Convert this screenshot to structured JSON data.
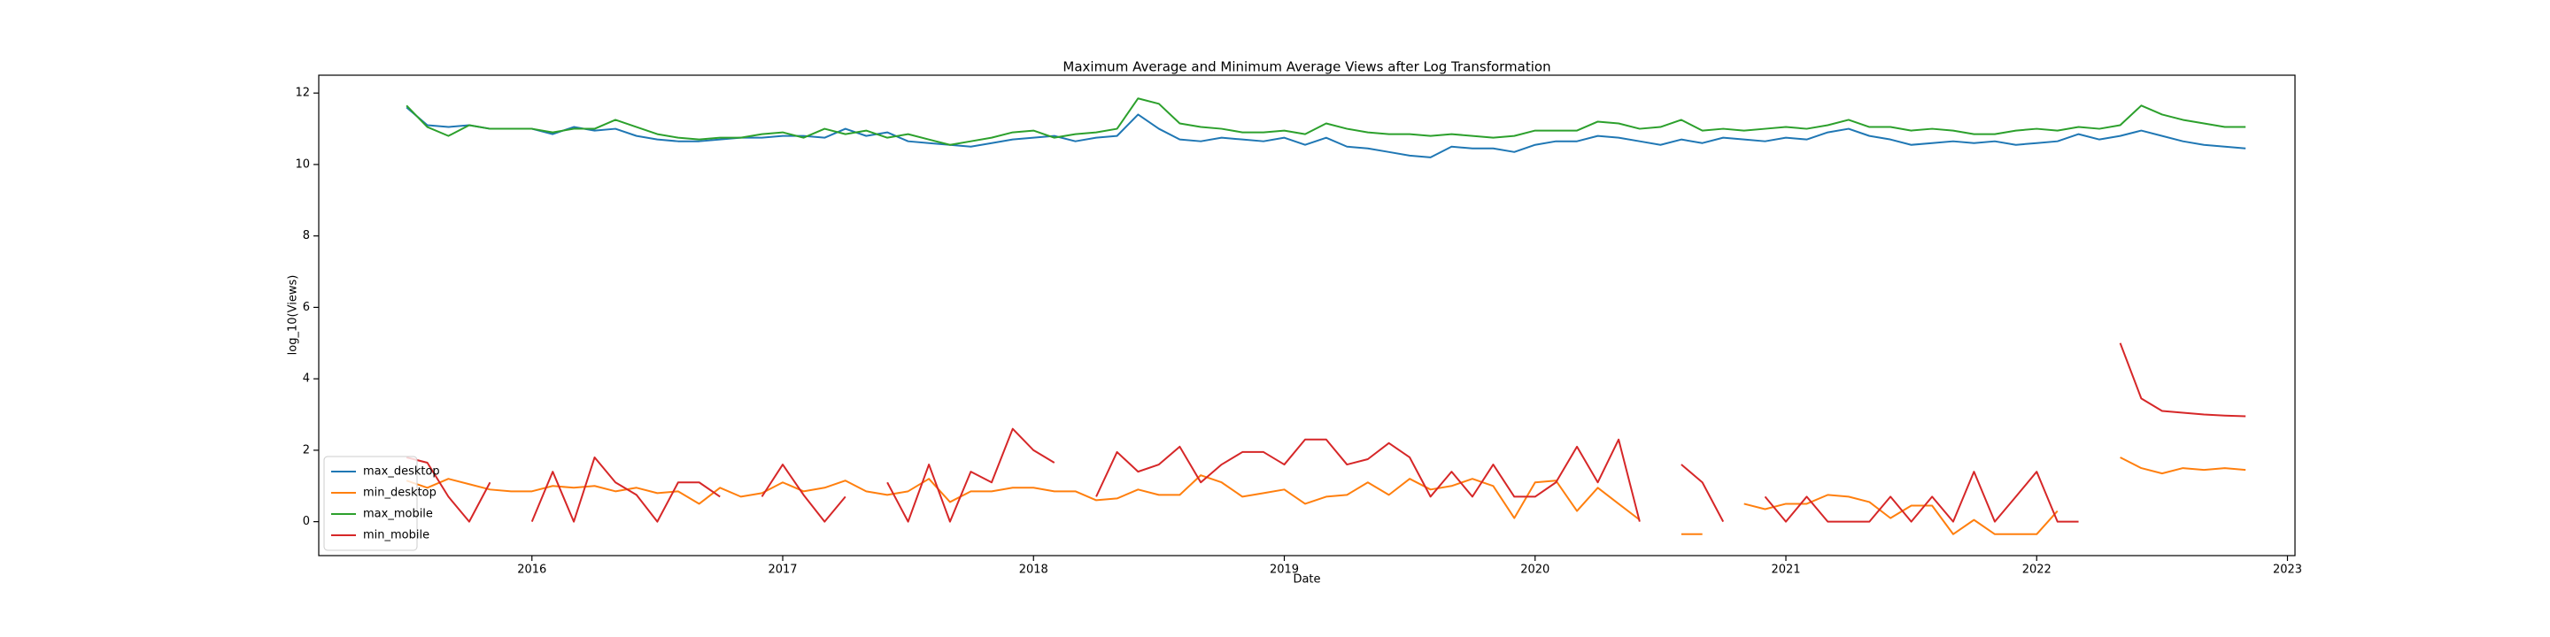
{
  "chart_data": {
    "type": "line",
    "title": "Maximum Average and Minimum Average Views after Log Transformation",
    "x_label": "Date",
    "y_label": "log_10(Views)",
    "x": [
      2015.5,
      2015.583,
      2015.667,
      2015.75,
      2015.833,
      2015.917,
      2016.0,
      2016.083,
      2016.167,
      2016.25,
      2016.333,
      2016.417,
      2016.5,
      2016.583,
      2016.667,
      2016.75,
      2016.833,
      2016.917,
      2017.0,
      2017.083,
      2017.167,
      2017.25,
      2017.333,
      2017.417,
      2017.5,
      2017.583,
      2017.667,
      2017.75,
      2017.833,
      2017.917,
      2018.0,
      2018.083,
      2018.167,
      2018.25,
      2018.333,
      2018.417,
      2018.5,
      2018.583,
      2018.667,
      2018.75,
      2018.833,
      2018.917,
      2019.0,
      2019.083,
      2019.167,
      2019.25,
      2019.333,
      2019.417,
      2019.5,
      2019.583,
      2019.667,
      2019.75,
      2019.833,
      2019.917,
      2020.0,
      2020.083,
      2020.167,
      2020.25,
      2020.333,
      2020.417,
      2020.5,
      2020.583,
      2020.667,
      2020.75,
      2020.833,
      2020.917,
      2021.0,
      2021.083,
      2021.167,
      2021.25,
      2021.333,
      2021.417,
      2021.5,
      2021.583,
      2021.667,
      2021.75,
      2021.833,
      2021.917,
      2022.0,
      2022.083,
      2022.167,
      2022.25,
      2022.333,
      2022.417,
      2022.5,
      2022.583,
      2022.667,
      2022.75,
      2022.833
    ],
    "series": [
      {
        "name": "max_desktop",
        "color": "#1f77b4",
        "values": [
          11.6,
          11.1,
          11.05,
          11.1,
          11.0,
          11.0,
          11.0,
          10.85,
          11.05,
          10.95,
          11.0,
          10.8,
          10.7,
          10.65,
          10.65,
          10.7,
          10.75,
          10.75,
          10.8,
          10.8,
          10.75,
          11.0,
          10.8,
          10.9,
          10.65,
          10.6,
          10.55,
          10.5,
          10.6,
          10.7,
          10.75,
          10.8,
          10.65,
          10.75,
          10.8,
          11.4,
          11.0,
          10.7,
          10.65,
          10.75,
          10.7,
          10.65,
          10.75,
          10.55,
          10.75,
          10.5,
          10.45,
          10.35,
          10.25,
          10.2,
          10.5,
          10.45,
          10.45,
          10.35,
          10.55,
          10.65,
          10.65,
          10.8,
          10.75,
          10.65,
          10.55,
          10.7,
          10.6,
          10.75,
          10.7,
          10.65,
          10.75,
          10.7,
          10.9,
          11.0,
          10.8,
          10.7,
          10.55,
          10.6,
          10.65,
          10.6,
          10.65,
          10.55,
          10.6,
          10.65,
          10.85,
          10.7,
          10.8,
          10.95,
          10.8,
          10.65,
          10.55,
          10.5,
          10.45
        ]
      },
      {
        "name": "min_desktop",
        "color": "#ff7f0e",
        "values": [
          1.15,
          0.95,
          1.2,
          1.05,
          0.9,
          0.85,
          0.85,
          1.0,
          0.95,
          1.0,
          0.85,
          0.95,
          0.8,
          0.85,
          0.5,
          0.95,
          0.7,
          0.8,
          1.1,
          0.85,
          0.95,
          1.15,
          0.85,
          0.75,
          0.85,
          1.2,
          0.55,
          0.85,
          0.85,
          0.95,
          0.95,
          0.85,
          0.85,
          0.6,
          0.65,
          0.9,
          0.75,
          0.75,
          1.3,
          1.1,
          0.7,
          0.8,
          0.9,
          0.5,
          0.7,
          0.75,
          1.1,
          0.75,
          1.2,
          0.9,
          1.0,
          1.2,
          1.0,
          0.1,
          1.1,
          1.15,
          0.3,
          0.95,
          0.5,
          0.05,
          null,
          -0.35,
          -0.35,
          null,
          0.5,
          0.35,
          0.5,
          0.5,
          0.75,
          0.7,
          0.55,
          0.1,
          0.45,
          0.45,
          -0.35,
          0.05,
          -0.35,
          -0.35,
          -0.35,
          0.3,
          null,
          null,
          1.8,
          1.5,
          1.35,
          1.5,
          1.45,
          1.5,
          1.45
        ]
      },
      {
        "name": "max_mobile",
        "color": "#2ca02c",
        "values": [
          11.65,
          11.05,
          10.8,
          11.1,
          11.0,
          11.0,
          11.0,
          10.9,
          11.0,
          11.0,
          11.25,
          11.05,
          10.85,
          10.75,
          10.7,
          10.75,
          10.75,
          10.85,
          10.9,
          10.75,
          11.0,
          10.85,
          10.95,
          10.75,
          10.85,
          10.7,
          10.55,
          10.65,
          10.75,
          10.9,
          10.95,
          10.75,
          10.85,
          10.9,
          11.0,
          11.85,
          11.7,
          11.15,
          11.05,
          11.0,
          10.9,
          10.9,
          10.95,
          10.85,
          11.15,
          11.0,
          10.9,
          10.85,
          10.85,
          10.8,
          10.85,
          10.8,
          10.75,
          10.8,
          10.95,
          10.95,
          10.95,
          11.2,
          11.15,
          11.0,
          11.05,
          11.25,
          10.95,
          11.0,
          10.95,
          11.0,
          11.05,
          11.0,
          11.1,
          11.25,
          11.05,
          11.05,
          10.95,
          11.0,
          10.95,
          10.85,
          10.85,
          10.95,
          11.0,
          10.95,
          11.05,
          11.0,
          11.1,
          11.65,
          11.4,
          11.25,
          11.15,
          11.05,
          11.05
        ]
      },
      {
        "name": "min_mobile",
        "color": "#d62728",
        "values": [
          1.8,
          1.65,
          0.7,
          0.0,
          1.1,
          null,
          0.0,
          1.4,
          0.0,
          1.8,
          1.1,
          0.75,
          0.0,
          1.1,
          1.1,
          0.7,
          null,
          0.7,
          1.6,
          0.75,
          0.0,
          0.7,
          null,
          1.1,
          0.0,
          1.6,
          0.0,
          1.4,
          1.1,
          2.6,
          2.0,
          1.65,
          null,
          0.7,
          1.95,
          1.4,
          1.6,
          2.1,
          1.1,
          1.6,
          1.95,
          1.95,
          1.6,
          2.3,
          2.3,
          1.6,
          1.75,
          2.2,
          1.8,
          0.7,
          1.4,
          0.7,
          1.6,
          0.7,
          0.7,
          1.1,
          2.1,
          1.1,
          2.3,
          0.0,
          null,
          1.6,
          1.1,
          0.0,
          null,
          0.7,
          0.0,
          0.7,
          0.0,
          0.0,
          0.0,
          0.7,
          0.0,
          0.7,
          0.0,
          1.4,
          0.0,
          0.7,
          1.4,
          0.0,
          0.0,
          null,
          5.0,
          3.45,
          3.1,
          3.05,
          3.0,
          2.97,
          2.95
        ]
      }
    ],
    "xlim": [
      2015.15,
      2023.03
    ],
    "ylim": [
      -0.95,
      12.5
    ],
    "xticks": [
      2016,
      2017,
      2018,
      2019,
      2020,
      2021,
      2022,
      2023
    ],
    "yticks": [
      0,
      2,
      4,
      6,
      8,
      10,
      12
    ],
    "legend": "lower left"
  }
}
